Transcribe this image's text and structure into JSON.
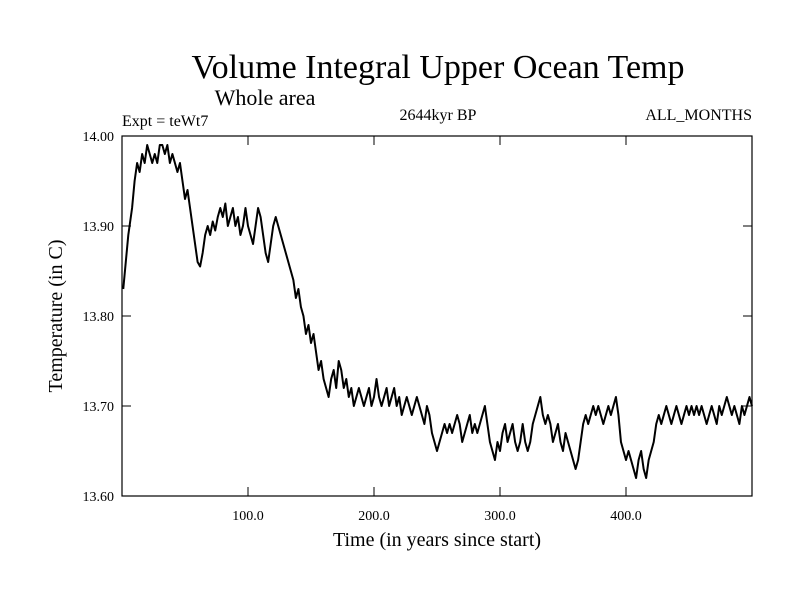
{
  "chart_data": {
    "type": "line",
    "title": "Volume Integral Upper Ocean Temp",
    "subtitle": "Whole area",
    "left_label": "Expt = teWt7",
    "center_label": "2644kyr BP",
    "right_label": "ALL_MONTHS",
    "xlabel": "Time (in years since start)",
    "ylabel": "Temperature (in C)",
    "xlim": [
      0,
      500
    ],
    "ylim": [
      13.6,
      14.0
    ],
    "x_ticks": [
      {
        "value": 100,
        "label": "100.0"
      },
      {
        "value": 200,
        "label": "200.0"
      },
      {
        "value": 300,
        "label": "300.0"
      },
      {
        "value": 400,
        "label": "400.0"
      }
    ],
    "y_ticks": [
      {
        "value": 13.6,
        "label": "13.60"
      },
      {
        "value": 13.7,
        "label": "13.70"
      },
      {
        "value": 13.8,
        "label": "13.80"
      },
      {
        "value": 13.9,
        "label": "13.90"
      },
      {
        "value": 14.0,
        "label": "14.00"
      }
    ],
    "series": [
      {
        "name": "temperature",
        "color": "#000000",
        "points": [
          [
            1,
            13.83
          ],
          [
            3,
            13.86
          ],
          [
            5,
            13.89
          ],
          [
            8,
            13.92
          ],
          [
            10,
            13.95
          ],
          [
            12,
            13.97
          ],
          [
            14,
            13.96
          ],
          [
            16,
            13.98
          ],
          [
            18,
            13.97
          ],
          [
            20,
            13.99
          ],
          [
            22,
            13.98
          ],
          [
            24,
            13.97
          ],
          [
            26,
            13.98
          ],
          [
            28,
            13.97
          ],
          [
            30,
            13.99
          ],
          [
            32,
            13.99
          ],
          [
            34,
            13.98
          ],
          [
            36,
            13.99
          ],
          [
            38,
            13.97
          ],
          [
            40,
            13.98
          ],
          [
            42,
            13.97
          ],
          [
            44,
            13.96
          ],
          [
            46,
            13.97
          ],
          [
            48,
            13.95
          ],
          [
            50,
            13.93
          ],
          [
            52,
            13.94
          ],
          [
            54,
            13.92
          ],
          [
            56,
            13.9
          ],
          [
            58,
            13.88
          ],
          [
            60,
            13.86
          ],
          [
            62,
            13.855
          ],
          [
            64,
            13.87
          ],
          [
            66,
            13.89
          ],
          [
            68,
            13.9
          ],
          [
            70,
            13.89
          ],
          [
            72,
            13.905
          ],
          [
            74,
            13.895
          ],
          [
            76,
            13.91
          ],
          [
            78,
            13.92
          ],
          [
            80,
            13.91
          ],
          [
            82,
            13.925
          ],
          [
            84,
            13.9
          ],
          [
            86,
            13.91
          ],
          [
            88,
            13.92
          ],
          [
            90,
            13.9
          ],
          [
            92,
            13.91
          ],
          [
            94,
            13.89
          ],
          [
            96,
            13.9
          ],
          [
            98,
            13.92
          ],
          [
            100,
            13.9
          ],
          [
            102,
            13.89
          ],
          [
            104,
            13.88
          ],
          [
            106,
            13.9
          ],
          [
            108,
            13.92
          ],
          [
            110,
            13.91
          ],
          [
            112,
            13.89
          ],
          [
            114,
            13.87
          ],
          [
            116,
            13.86
          ],
          [
            118,
            13.88
          ],
          [
            120,
            13.9
          ],
          [
            122,
            13.91
          ],
          [
            124,
            13.9
          ],
          [
            126,
            13.89
          ],
          [
            128,
            13.88
          ],
          [
            130,
            13.87
          ],
          [
            132,
            13.86
          ],
          [
            134,
            13.85
          ],
          [
            136,
            13.84
          ],
          [
            138,
            13.82
          ],
          [
            140,
            13.83
          ],
          [
            142,
            13.81
          ],
          [
            144,
            13.8
          ],
          [
            146,
            13.78
          ],
          [
            148,
            13.79
          ],
          [
            150,
            13.77
          ],
          [
            152,
            13.78
          ],
          [
            154,
            13.76
          ],
          [
            156,
            13.74
          ],
          [
            158,
            13.75
          ],
          [
            160,
            13.73
          ],
          [
            162,
            13.72
          ],
          [
            164,
            13.71
          ],
          [
            166,
            13.73
          ],
          [
            168,
            13.74
          ],
          [
            170,
            13.72
          ],
          [
            172,
            13.75
          ],
          [
            174,
            13.74
          ],
          [
            176,
            13.72
          ],
          [
            178,
            13.73
          ],
          [
            180,
            13.71
          ],
          [
            182,
            13.72
          ],
          [
            184,
            13.7
          ],
          [
            186,
            13.71
          ],
          [
            188,
            13.72
          ],
          [
            190,
            13.71
          ],
          [
            192,
            13.7
          ],
          [
            194,
            13.71
          ],
          [
            196,
            13.72
          ],
          [
            198,
            13.7
          ],
          [
            200,
            13.71
          ],
          [
            202,
            13.73
          ],
          [
            204,
            13.71
          ],
          [
            206,
            13.7
          ],
          [
            208,
            13.71
          ],
          [
            210,
            13.72
          ],
          [
            212,
            13.7
          ],
          [
            214,
            13.71
          ],
          [
            216,
            13.72
          ],
          [
            218,
            13.7
          ],
          [
            220,
            13.71
          ],
          [
            222,
            13.69
          ],
          [
            224,
            13.7
          ],
          [
            226,
            13.71
          ],
          [
            228,
            13.7
          ],
          [
            230,
            13.69
          ],
          [
            232,
            13.7
          ],
          [
            234,
            13.71
          ],
          [
            236,
            13.7
          ],
          [
            238,
            13.69
          ],
          [
            240,
            13.68
          ],
          [
            242,
            13.7
          ],
          [
            244,
            13.69
          ],
          [
            246,
            13.67
          ],
          [
            248,
            13.66
          ],
          [
            250,
            13.65
          ],
          [
            252,
            13.66
          ],
          [
            254,
            13.67
          ],
          [
            256,
            13.68
          ],
          [
            258,
            13.67
          ],
          [
            260,
            13.68
          ],
          [
            262,
            13.67
          ],
          [
            264,
            13.68
          ],
          [
            266,
            13.69
          ],
          [
            268,
            13.68
          ],
          [
            270,
            13.66
          ],
          [
            272,
            13.67
          ],
          [
            274,
            13.68
          ],
          [
            276,
            13.69
          ],
          [
            278,
            13.67
          ],
          [
            280,
            13.68
          ],
          [
            282,
            13.67
          ],
          [
            284,
            13.68
          ],
          [
            286,
            13.69
          ],
          [
            288,
            13.7
          ],
          [
            290,
            13.68
          ],
          [
            292,
            13.66
          ],
          [
            294,
            13.65
          ],
          [
            296,
            13.64
          ],
          [
            298,
            13.66
          ],
          [
            300,
            13.65
          ],
          [
            302,
            13.67
          ],
          [
            304,
            13.68
          ],
          [
            306,
            13.66
          ],
          [
            308,
            13.67
          ],
          [
            310,
            13.68
          ],
          [
            312,
            13.66
          ],
          [
            314,
            13.65
          ],
          [
            316,
            13.66
          ],
          [
            318,
            13.68
          ],
          [
            320,
            13.66
          ],
          [
            322,
            13.65
          ],
          [
            324,
            13.66
          ],
          [
            326,
            13.68
          ],
          [
            328,
            13.69
          ],
          [
            330,
            13.7
          ],
          [
            332,
            13.71
          ],
          [
            334,
            13.69
          ],
          [
            336,
            13.68
          ],
          [
            338,
            13.69
          ],
          [
            340,
            13.68
          ],
          [
            342,
            13.66
          ],
          [
            344,
            13.67
          ],
          [
            346,
            13.68
          ],
          [
            348,
            13.66
          ],
          [
            350,
            13.65
          ],
          [
            352,
            13.67
          ],
          [
            354,
            13.66
          ],
          [
            356,
            13.65
          ],
          [
            358,
            13.64
          ],
          [
            360,
            13.63
          ],
          [
            362,
            13.64
          ],
          [
            364,
            13.66
          ],
          [
            366,
            13.68
          ],
          [
            368,
            13.69
          ],
          [
            370,
            13.68
          ],
          [
            372,
            13.69
          ],
          [
            374,
            13.7
          ],
          [
            376,
            13.69
          ],
          [
            378,
            13.7
          ],
          [
            380,
            13.69
          ],
          [
            382,
            13.68
          ],
          [
            384,
            13.69
          ],
          [
            386,
            13.7
          ],
          [
            388,
            13.69
          ],
          [
            390,
            13.7
          ],
          [
            392,
            13.71
          ],
          [
            394,
            13.69
          ],
          [
            396,
            13.66
          ],
          [
            398,
            13.65
          ],
          [
            400,
            13.64
          ],
          [
            402,
            13.65
          ],
          [
            404,
            13.64
          ],
          [
            406,
            13.63
          ],
          [
            408,
            13.62
          ],
          [
            410,
            13.64
          ],
          [
            412,
            13.65
          ],
          [
            414,
            13.63
          ],
          [
            416,
            13.62
          ],
          [
            418,
            13.64
          ],
          [
            420,
            13.65
          ],
          [
            422,
            13.66
          ],
          [
            424,
            13.68
          ],
          [
            426,
            13.69
          ],
          [
            428,
            13.68
          ],
          [
            430,
            13.69
          ],
          [
            432,
            13.7
          ],
          [
            434,
            13.69
          ],
          [
            436,
            13.68
          ],
          [
            438,
            13.69
          ],
          [
            440,
            13.7
          ],
          [
            442,
            13.69
          ],
          [
            444,
            13.68
          ],
          [
            446,
            13.69
          ],
          [
            448,
            13.7
          ],
          [
            450,
            13.69
          ],
          [
            452,
            13.7
          ],
          [
            454,
            13.69
          ],
          [
            456,
            13.7
          ],
          [
            458,
            13.69
          ],
          [
            460,
            13.7
          ],
          [
            462,
            13.69
          ],
          [
            464,
            13.68
          ],
          [
            466,
            13.69
          ],
          [
            468,
            13.7
          ],
          [
            470,
            13.69
          ],
          [
            472,
            13.68
          ],
          [
            474,
            13.7
          ],
          [
            476,
            13.69
          ],
          [
            478,
            13.7
          ],
          [
            480,
            13.71
          ],
          [
            482,
            13.7
          ],
          [
            484,
            13.69
          ],
          [
            486,
            13.7
          ],
          [
            488,
            13.69
          ],
          [
            490,
            13.68
          ],
          [
            492,
            13.7
          ],
          [
            494,
            13.69
          ],
          [
            496,
            13.7
          ],
          [
            498,
            13.71
          ],
          [
            500,
            13.7
          ]
        ]
      }
    ]
  }
}
